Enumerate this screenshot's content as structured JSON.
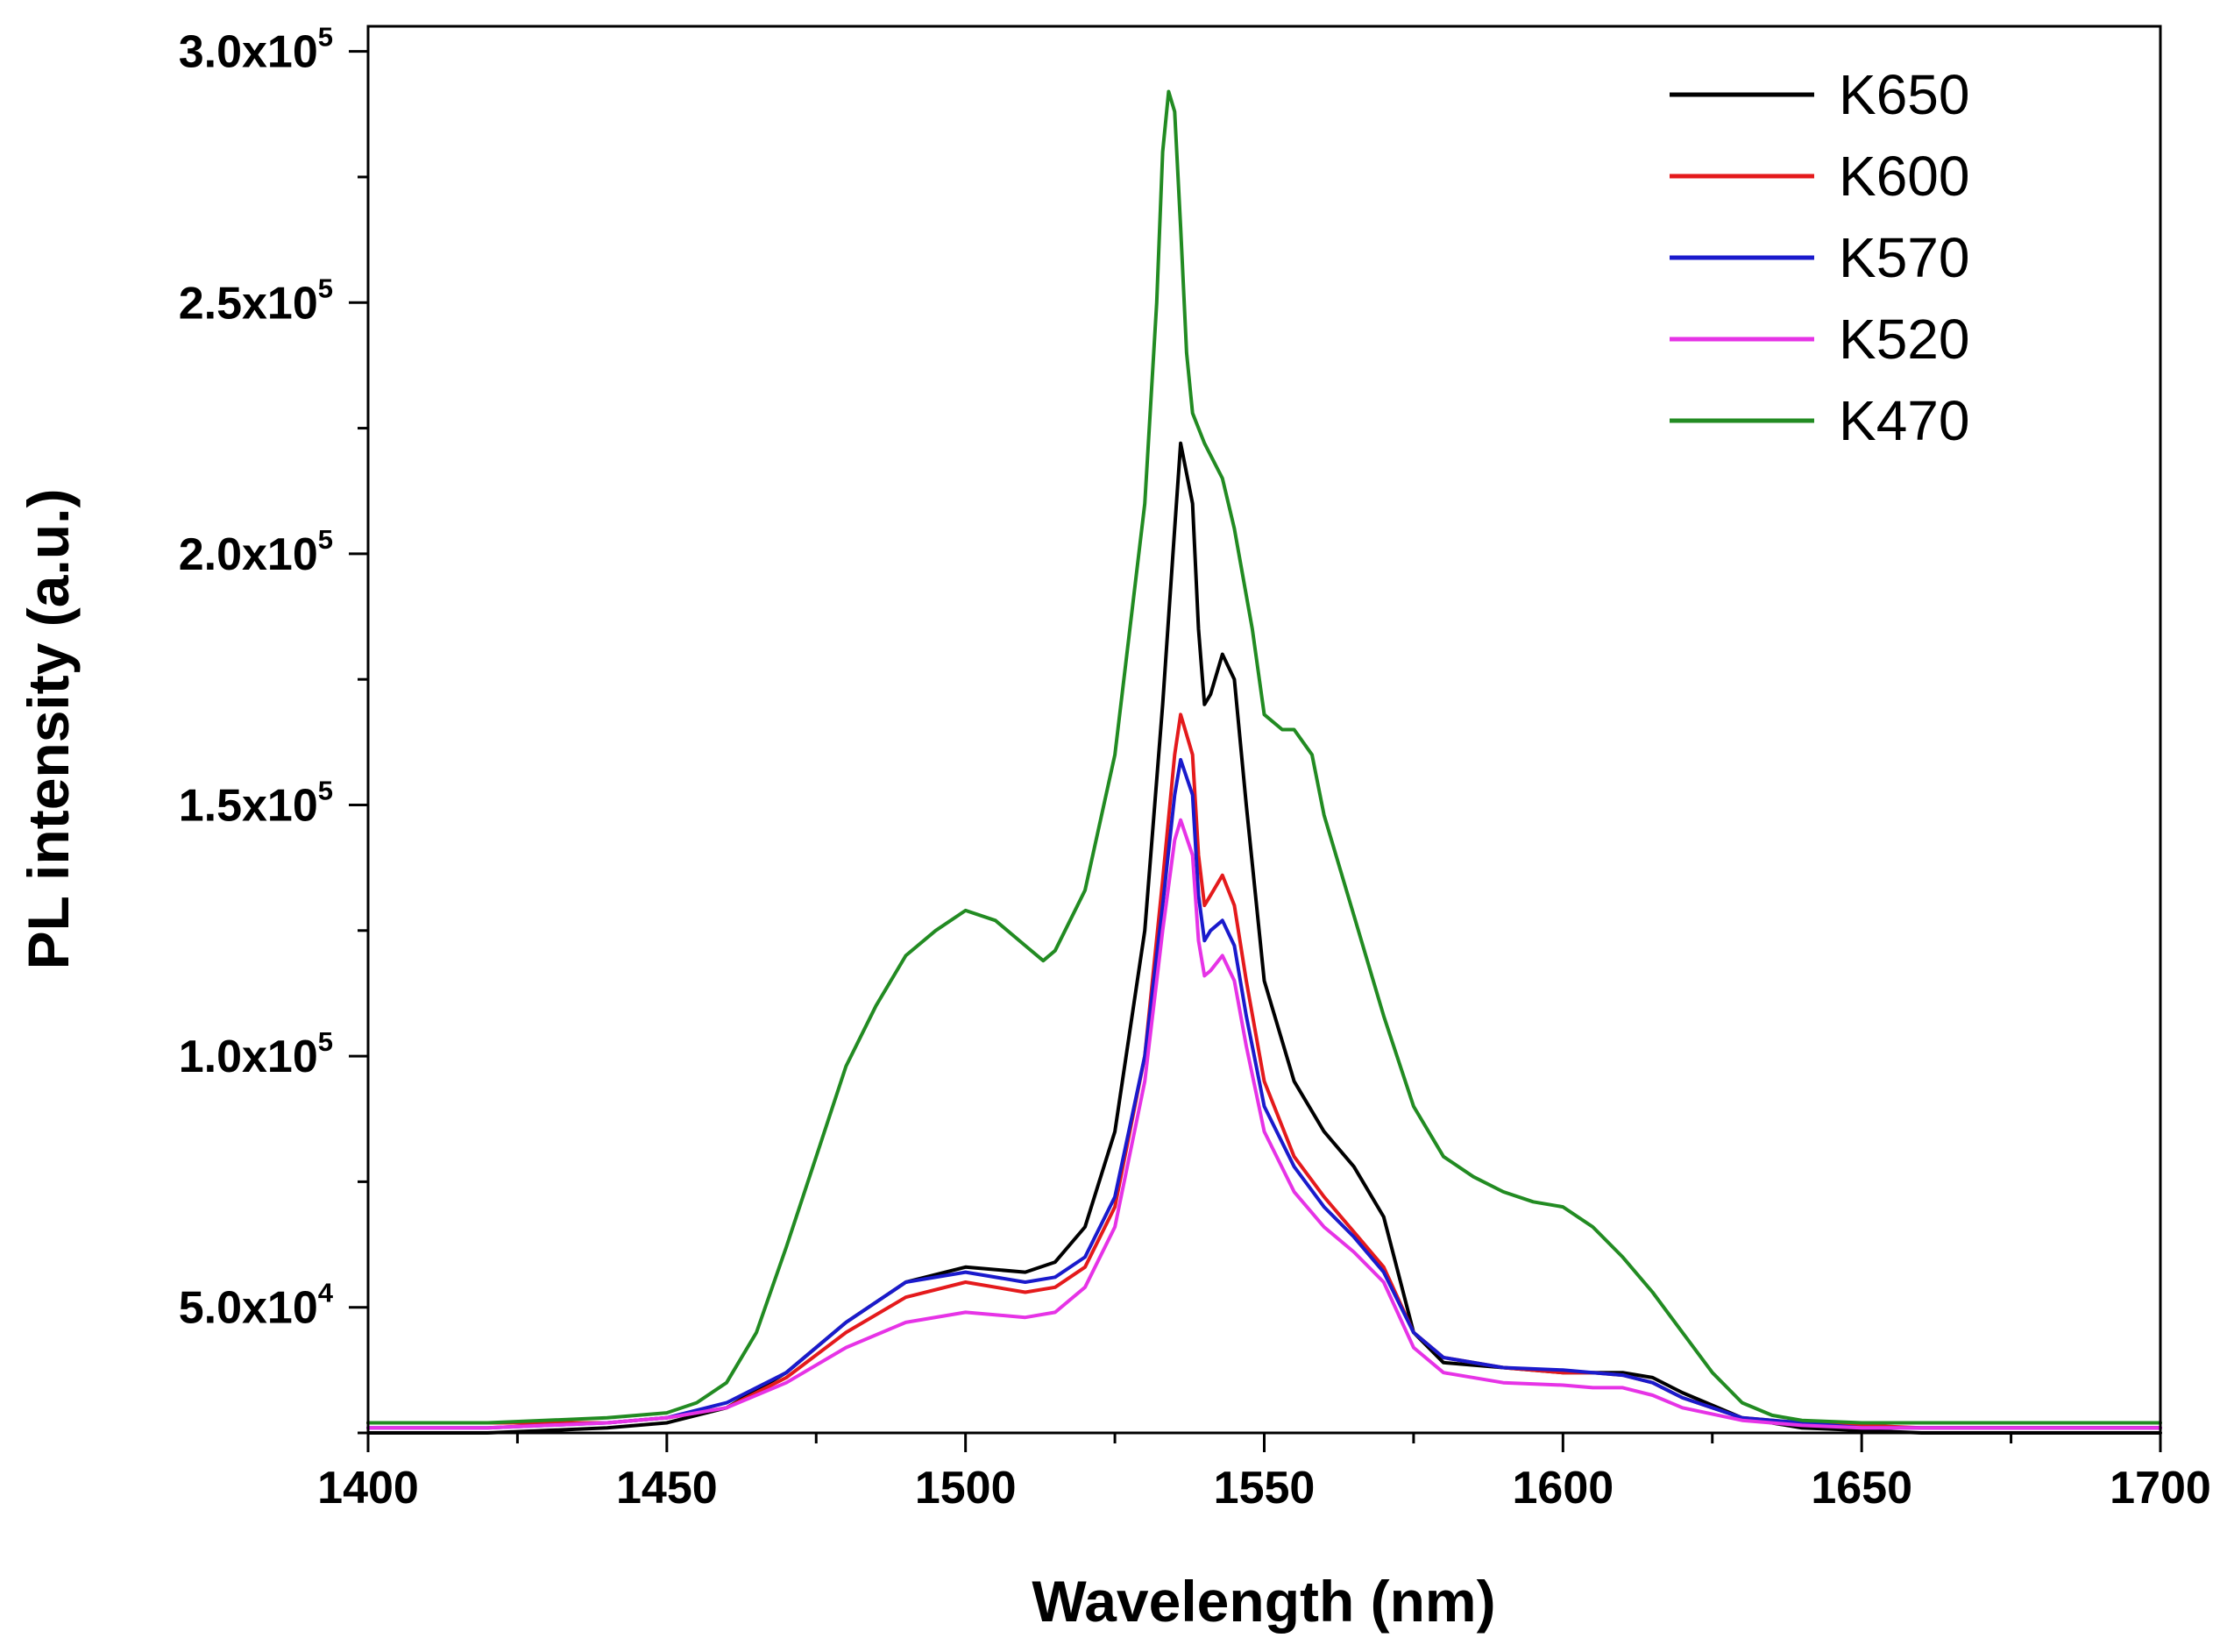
{
  "chart_data": {
    "type": "line",
    "title": "",
    "xlabel": "Wavelength (nm)",
    "ylabel": "PL intensity (a.u.)",
    "xlim": [
      1400,
      1700
    ],
    "ylim": [
      25000,
      305000
    ],
    "grid": false,
    "legend_position": "top-right",
    "x_ticks": [
      1400,
      1450,
      1500,
      1550,
      1600,
      1650,
      1700
    ],
    "x_tick_labels": [
      "1400",
      "1450",
      "1500",
      "1550",
      "1600",
      "1650",
      "1700"
    ],
    "y_ticks": [
      {
        "value": 50000,
        "mantissa": "5.0x10",
        "exponent": "4"
      },
      {
        "value": 100000,
        "mantissa": "1.0x10",
        "exponent": "5"
      },
      {
        "value": 150000,
        "mantissa": "1.5x10",
        "exponent": "5"
      },
      {
        "value": 200000,
        "mantissa": "2.0x10",
        "exponent": "5"
      },
      {
        "value": 250000,
        "mantissa": "2.5x10",
        "exponent": "5"
      },
      {
        "value": 300000,
        "mantissa": "3.0x10",
        "exponent": "5"
      }
    ],
    "series": [
      {
        "name": "K650",
        "color": "#000000",
        "points": [
          [
            1400,
            25000
          ],
          [
            1420,
            25000
          ],
          [
            1440,
            26000
          ],
          [
            1450,
            27000
          ],
          [
            1460,
            30000
          ],
          [
            1470,
            37000
          ],
          [
            1480,
            47000
          ],
          [
            1490,
            55000
          ],
          [
            1500,
            58000
          ],
          [
            1510,
            57000
          ],
          [
            1515,
            59000
          ],
          [
            1520,
            66000
          ],
          [
            1525,
            85000
          ],
          [
            1530,
            125000
          ],
          [
            1533,
            170000
          ],
          [
            1535,
            205000
          ],
          [
            1536,
            222000
          ],
          [
            1538,
            210000
          ],
          [
            1539,
            185000
          ],
          [
            1540,
            170000
          ],
          [
            1541,
            172000
          ],
          [
            1543,
            180000
          ],
          [
            1545,
            175000
          ],
          [
            1547,
            150000
          ],
          [
            1550,
            115000
          ],
          [
            1555,
            95000
          ],
          [
            1560,
            85000
          ],
          [
            1565,
            78000
          ],
          [
            1570,
            68000
          ],
          [
            1575,
            45000
          ],
          [
            1580,
            39000
          ],
          [
            1590,
            38000
          ],
          [
            1600,
            37000
          ],
          [
            1605,
            37000
          ],
          [
            1610,
            37000
          ],
          [
            1615,
            36000
          ],
          [
            1620,
            33000
          ],
          [
            1630,
            28000
          ],
          [
            1640,
            26000
          ],
          [
            1650,
            25500
          ],
          [
            1660,
            25000
          ],
          [
            1680,
            25000
          ],
          [
            1700,
            25000
          ]
        ]
      },
      {
        "name": "K600",
        "color": "#e41a1c",
        "points": [
          [
            1400,
            27000
          ],
          [
            1420,
            27000
          ],
          [
            1440,
            27000
          ],
          [
            1450,
            28000
          ],
          [
            1460,
            30000
          ],
          [
            1470,
            36000
          ],
          [
            1480,
            45000
          ],
          [
            1490,
            52000
          ],
          [
            1500,
            55000
          ],
          [
            1510,
            53000
          ],
          [
            1515,
            54000
          ],
          [
            1520,
            58000
          ],
          [
            1525,
            70000
          ],
          [
            1530,
            100000
          ],
          [
            1533,
            135000
          ],
          [
            1535,
            160000
          ],
          [
            1536,
            168000
          ],
          [
            1538,
            160000
          ],
          [
            1539,
            140000
          ],
          [
            1540,
            130000
          ],
          [
            1541,
            132000
          ],
          [
            1543,
            136000
          ],
          [
            1545,
            130000
          ],
          [
            1547,
            115000
          ],
          [
            1550,
            95000
          ],
          [
            1555,
            80000
          ],
          [
            1560,
            72000
          ],
          [
            1565,
            65000
          ],
          [
            1570,
            58000
          ],
          [
            1575,
            45000
          ],
          [
            1580,
            40000
          ],
          [
            1590,
            38000
          ],
          [
            1600,
            37000
          ],
          [
            1605,
            37000
          ],
          [
            1610,
            36500
          ],
          [
            1615,
            35000
          ],
          [
            1620,
            32000
          ],
          [
            1630,
            28000
          ],
          [
            1640,
            27000
          ],
          [
            1650,
            26500
          ],
          [
            1660,
            26000
          ],
          [
            1680,
            26000
          ],
          [
            1700,
            26000
          ]
        ]
      },
      {
        "name": "K570",
        "color": "#1a1acc",
        "points": [
          [
            1400,
            26000
          ],
          [
            1420,
            26000
          ],
          [
            1440,
            27000
          ],
          [
            1450,
            28000
          ],
          [
            1460,
            31000
          ],
          [
            1470,
            37000
          ],
          [
            1480,
            47000
          ],
          [
            1490,
            55000
          ],
          [
            1500,
            57000
          ],
          [
            1510,
            55000
          ],
          [
            1515,
            56000
          ],
          [
            1520,
            60000
          ],
          [
            1525,
            72000
          ],
          [
            1530,
            100000
          ],
          [
            1533,
            130000
          ],
          [
            1535,
            152000
          ],
          [
            1536,
            159000
          ],
          [
            1538,
            152000
          ],
          [
            1539,
            132000
          ],
          [
            1540,
            123000
          ],
          [
            1541,
            125000
          ],
          [
            1543,
            127000
          ],
          [
            1545,
            122000
          ],
          [
            1547,
            108000
          ],
          [
            1550,
            90000
          ],
          [
            1555,
            78000
          ],
          [
            1560,
            70000
          ],
          [
            1565,
            64000
          ],
          [
            1570,
            57000
          ],
          [
            1575,
            45000
          ],
          [
            1580,
            40000
          ],
          [
            1590,
            38000
          ],
          [
            1600,
            37500
          ],
          [
            1605,
            37000
          ],
          [
            1610,
            36500
          ],
          [
            1615,
            35000
          ],
          [
            1620,
            32000
          ],
          [
            1630,
            28000
          ],
          [
            1640,
            27000
          ],
          [
            1650,
            26000
          ],
          [
            1660,
            26000
          ],
          [
            1680,
            26000
          ],
          [
            1700,
            26000
          ]
        ]
      },
      {
        "name": "K520",
        "color": "#e633e6",
        "points": [
          [
            1400,
            26000
          ],
          [
            1420,
            26000
          ],
          [
            1440,
            27000
          ],
          [
            1450,
            28000
          ],
          [
            1460,
            30000
          ],
          [
            1470,
            35000
          ],
          [
            1480,
            42000
          ],
          [
            1490,
            47000
          ],
          [
            1500,
            49000
          ],
          [
            1510,
            48000
          ],
          [
            1515,
            49000
          ],
          [
            1520,
            54000
          ],
          [
            1525,
            66000
          ],
          [
            1530,
            95000
          ],
          [
            1533,
            125000
          ],
          [
            1535,
            143000
          ],
          [
            1536,
            147000
          ],
          [
            1538,
            140000
          ],
          [
            1539,
            123000
          ],
          [
            1540,
            116000
          ],
          [
            1541,
            117000
          ],
          [
            1543,
            120000
          ],
          [
            1545,
            115000
          ],
          [
            1547,
            102000
          ],
          [
            1550,
            85000
          ],
          [
            1555,
            73000
          ],
          [
            1560,
            66000
          ],
          [
            1565,
            61000
          ],
          [
            1570,
            55000
          ],
          [
            1575,
            42000
          ],
          [
            1580,
            37000
          ],
          [
            1590,
            35000
          ],
          [
            1600,
            34500
          ],
          [
            1605,
            34000
          ],
          [
            1610,
            34000
          ],
          [
            1615,
            32500
          ],
          [
            1620,
            30000
          ],
          [
            1630,
            27500
          ],
          [
            1640,
            26500
          ],
          [
            1650,
            26000
          ],
          [
            1660,
            26000
          ],
          [
            1680,
            26000
          ],
          [
            1700,
            26000
          ]
        ]
      },
      {
        "name": "K470",
        "color": "#228b22",
        "points": [
          [
            1400,
            27000
          ],
          [
            1420,
            27000
          ],
          [
            1440,
            28000
          ],
          [
            1450,
            29000
          ],
          [
            1455,
            31000
          ],
          [
            1460,
            35000
          ],
          [
            1465,
            45000
          ],
          [
            1470,
            62000
          ],
          [
            1475,
            80000
          ],
          [
            1480,
            98000
          ],
          [
            1485,
            110000
          ],
          [
            1490,
            120000
          ],
          [
            1495,
            125000
          ],
          [
            1500,
            129000
          ],
          [
            1505,
            127000
          ],
          [
            1510,
            122000
          ],
          [
            1513,
            119000
          ],
          [
            1515,
            121000
          ],
          [
            1520,
            133000
          ],
          [
            1525,
            160000
          ],
          [
            1530,
            210000
          ],
          [
            1532,
            250000
          ],
          [
            1533,
            280000
          ],
          [
            1534,
            292000
          ],
          [
            1535,
            288000
          ],
          [
            1536,
            265000
          ],
          [
            1537,
            240000
          ],
          [
            1538,
            228000
          ],
          [
            1540,
            222000
          ],
          [
            1543,
            215000
          ],
          [
            1545,
            205000
          ],
          [
            1548,
            185000
          ],
          [
            1550,
            168000
          ],
          [
            1553,
            165000
          ],
          [
            1555,
            165000
          ],
          [
            1558,
            160000
          ],
          [
            1560,
            148000
          ],
          [
            1565,
            128000
          ],
          [
            1570,
            108000
          ],
          [
            1575,
            90000
          ],
          [
            1580,
            80000
          ],
          [
            1585,
            76000
          ],
          [
            1590,
            73000
          ],
          [
            1595,
            71000
          ],
          [
            1600,
            70000
          ],
          [
            1605,
            66000
          ],
          [
            1610,
            60000
          ],
          [
            1615,
            53000
          ],
          [
            1620,
            45000
          ],
          [
            1625,
            37000
          ],
          [
            1630,
            31000
          ],
          [
            1635,
            28500
          ],
          [
            1640,
            27500
          ],
          [
            1650,
            27000
          ],
          [
            1660,
            27000
          ],
          [
            1680,
            27000
          ],
          [
            1700,
            27000
          ]
        ]
      }
    ]
  }
}
